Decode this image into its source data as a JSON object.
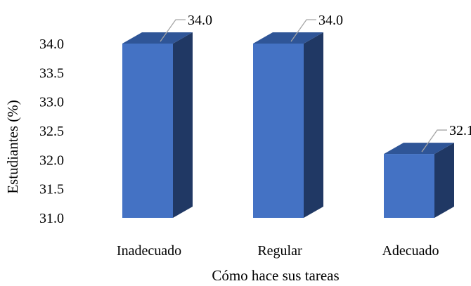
{
  "chart_data": {
    "type": "bar",
    "style": "3d-column",
    "title": "",
    "xlabel": "Cómo hace sus tareas",
    "ylabel": "Estudiantes (%)",
    "categories": [
      "Inadecuado",
      "Regular",
      "Adecuado"
    ],
    "values": [
      34.0,
      34.0,
      32.1
    ],
    "data_labels": [
      "34.0",
      "34.0",
      "32.1"
    ],
    "ylim": [
      31.0,
      34.0
    ],
    "yticks": [
      "31.0",
      "31.5",
      "32.0",
      "32.5",
      "33.0",
      "33.5",
      "34.0"
    ],
    "grid": false,
    "legend": "none",
    "colors": {
      "bar_front": "#4472C4",
      "bar_top": "#2F5597",
      "bar_side": "#203864",
      "leader": "#A6A6A6"
    }
  }
}
